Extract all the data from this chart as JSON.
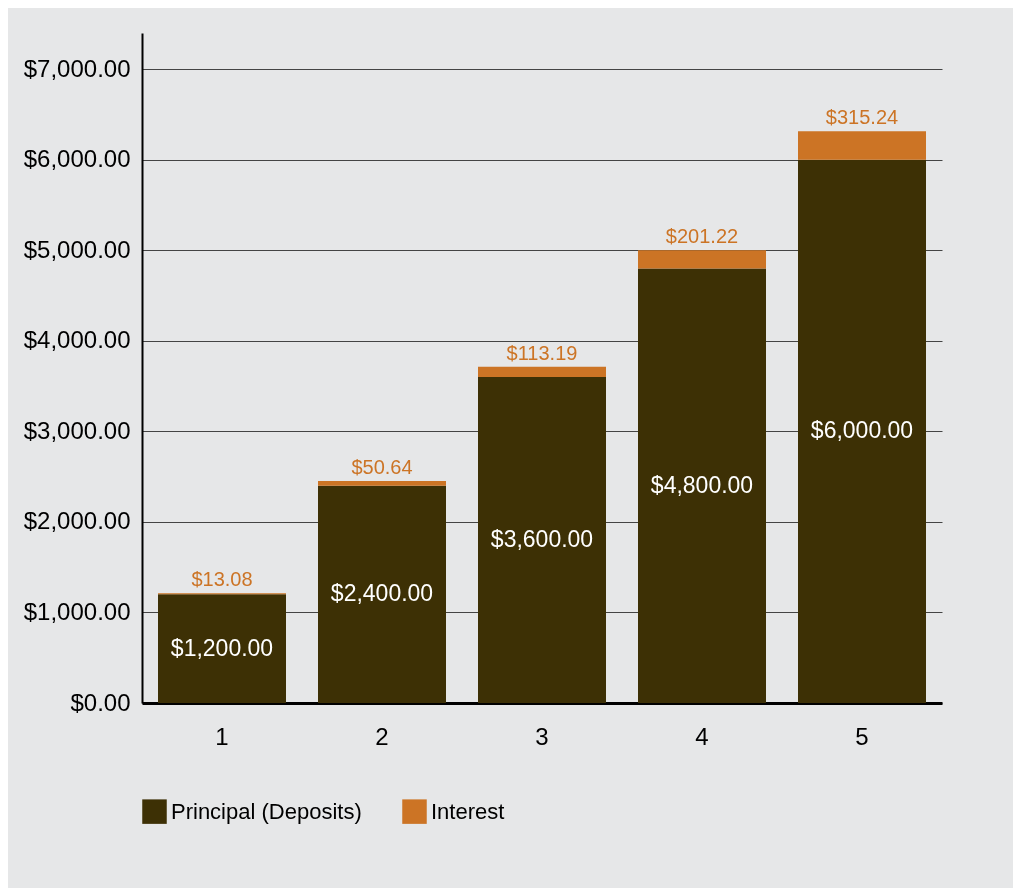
{
  "chart_data": {
    "type": "bar",
    "stacked": true,
    "categories": [
      "1",
      "2",
      "3",
      "4",
      "5"
    ],
    "series": [
      {
        "name": "Principal (Deposits)",
        "color": "#3d3005",
        "values": [
          1200,
          2400,
          3600,
          4800,
          6000
        ],
        "value_labels": [
          "$1,200.00",
          "$2,400.00",
          "$3,600.00",
          "$4,800.00",
          "$6,000.00"
        ]
      },
      {
        "name": "Interest",
        "color": "#cc7425",
        "values": [
          13.08,
          50.64,
          113.19,
          201.22,
          315.24
        ],
        "value_labels": [
          "$13.08",
          "$50.64",
          "$113.19",
          "$201.22",
          "$315.24"
        ]
      }
    ],
    "ylim": [
      0,
      7400
    ],
    "yticks": [
      {
        "value": 0,
        "label": "$0.00"
      },
      {
        "value": 1000,
        "label": "$1,000.00"
      },
      {
        "value": 2000,
        "label": "$2,000.00"
      },
      {
        "value": 3000,
        "label": "$3,000.00"
      },
      {
        "value": 4000,
        "label": "$4,000.00"
      },
      {
        "value": 5000,
        "label": "$5,000.00"
      },
      {
        "value": 6000,
        "label": "$6,000.00"
      },
      {
        "value": 7000,
        "label": "$7,000.00"
      }
    ],
    "grid": "y",
    "legend": "bottom"
  }
}
